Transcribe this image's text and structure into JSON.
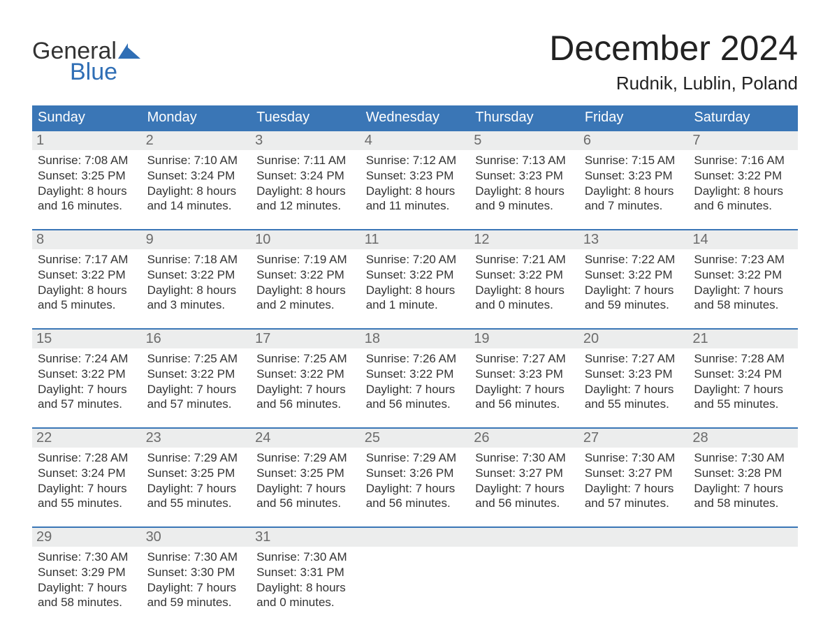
{
  "logo": {
    "line1": "General",
    "line2": "Blue"
  },
  "title": "December 2024",
  "location": "Rudnik, Lublin, Poland",
  "colors": {
    "header_bg": "#3a76b6",
    "header_text": "#ffffff",
    "daynum_bg": "#eceded",
    "daynum_text": "#6b6b6b",
    "divider": "#3a76b6",
    "body_text": "#333333",
    "logo_blue": "#2f6eb5"
  },
  "weekdays": [
    "Sunday",
    "Monday",
    "Tuesday",
    "Wednesday",
    "Thursday",
    "Friday",
    "Saturday"
  ],
  "weeks": [
    [
      {
        "day": "1",
        "sunrise": "Sunrise: 7:08 AM",
        "sunset": "Sunset: 3:25 PM",
        "dl1": "Daylight: 8 hours",
        "dl2": "and 16 minutes."
      },
      {
        "day": "2",
        "sunrise": "Sunrise: 7:10 AM",
        "sunset": "Sunset: 3:24 PM",
        "dl1": "Daylight: 8 hours",
        "dl2": "and 14 minutes."
      },
      {
        "day": "3",
        "sunrise": "Sunrise: 7:11 AM",
        "sunset": "Sunset: 3:24 PM",
        "dl1": "Daylight: 8 hours",
        "dl2": "and 12 minutes."
      },
      {
        "day": "4",
        "sunrise": "Sunrise: 7:12 AM",
        "sunset": "Sunset: 3:23 PM",
        "dl1": "Daylight: 8 hours",
        "dl2": "and 11 minutes."
      },
      {
        "day": "5",
        "sunrise": "Sunrise: 7:13 AM",
        "sunset": "Sunset: 3:23 PM",
        "dl1": "Daylight: 8 hours",
        "dl2": "and 9 minutes."
      },
      {
        "day": "6",
        "sunrise": "Sunrise: 7:15 AM",
        "sunset": "Sunset: 3:23 PM",
        "dl1": "Daylight: 8 hours",
        "dl2": "and 7 minutes."
      },
      {
        "day": "7",
        "sunrise": "Sunrise: 7:16 AM",
        "sunset": "Sunset: 3:22 PM",
        "dl1": "Daylight: 8 hours",
        "dl2": "and 6 minutes."
      }
    ],
    [
      {
        "day": "8",
        "sunrise": "Sunrise: 7:17 AM",
        "sunset": "Sunset: 3:22 PM",
        "dl1": "Daylight: 8 hours",
        "dl2": "and 5 minutes."
      },
      {
        "day": "9",
        "sunrise": "Sunrise: 7:18 AM",
        "sunset": "Sunset: 3:22 PM",
        "dl1": "Daylight: 8 hours",
        "dl2": "and 3 minutes."
      },
      {
        "day": "10",
        "sunrise": "Sunrise: 7:19 AM",
        "sunset": "Sunset: 3:22 PM",
        "dl1": "Daylight: 8 hours",
        "dl2": "and 2 minutes."
      },
      {
        "day": "11",
        "sunrise": "Sunrise: 7:20 AM",
        "sunset": "Sunset: 3:22 PM",
        "dl1": "Daylight: 8 hours",
        "dl2": "and 1 minute."
      },
      {
        "day": "12",
        "sunrise": "Sunrise: 7:21 AM",
        "sunset": "Sunset: 3:22 PM",
        "dl1": "Daylight: 8 hours",
        "dl2": "and 0 minutes."
      },
      {
        "day": "13",
        "sunrise": "Sunrise: 7:22 AM",
        "sunset": "Sunset: 3:22 PM",
        "dl1": "Daylight: 7 hours",
        "dl2": "and 59 minutes."
      },
      {
        "day": "14",
        "sunrise": "Sunrise: 7:23 AM",
        "sunset": "Sunset: 3:22 PM",
        "dl1": "Daylight: 7 hours",
        "dl2": "and 58 minutes."
      }
    ],
    [
      {
        "day": "15",
        "sunrise": "Sunrise: 7:24 AM",
        "sunset": "Sunset: 3:22 PM",
        "dl1": "Daylight: 7 hours",
        "dl2": "and 57 minutes."
      },
      {
        "day": "16",
        "sunrise": "Sunrise: 7:25 AM",
        "sunset": "Sunset: 3:22 PM",
        "dl1": "Daylight: 7 hours",
        "dl2": "and 57 minutes."
      },
      {
        "day": "17",
        "sunrise": "Sunrise: 7:25 AM",
        "sunset": "Sunset: 3:22 PM",
        "dl1": "Daylight: 7 hours",
        "dl2": "and 56 minutes."
      },
      {
        "day": "18",
        "sunrise": "Sunrise: 7:26 AM",
        "sunset": "Sunset: 3:22 PM",
        "dl1": "Daylight: 7 hours",
        "dl2": "and 56 minutes."
      },
      {
        "day": "19",
        "sunrise": "Sunrise: 7:27 AM",
        "sunset": "Sunset: 3:23 PM",
        "dl1": "Daylight: 7 hours",
        "dl2": "and 56 minutes."
      },
      {
        "day": "20",
        "sunrise": "Sunrise: 7:27 AM",
        "sunset": "Sunset: 3:23 PM",
        "dl1": "Daylight: 7 hours",
        "dl2": "and 55 minutes."
      },
      {
        "day": "21",
        "sunrise": "Sunrise: 7:28 AM",
        "sunset": "Sunset: 3:24 PM",
        "dl1": "Daylight: 7 hours",
        "dl2": "and 55 minutes."
      }
    ],
    [
      {
        "day": "22",
        "sunrise": "Sunrise: 7:28 AM",
        "sunset": "Sunset: 3:24 PM",
        "dl1": "Daylight: 7 hours",
        "dl2": "and 55 minutes."
      },
      {
        "day": "23",
        "sunrise": "Sunrise: 7:29 AM",
        "sunset": "Sunset: 3:25 PM",
        "dl1": "Daylight: 7 hours",
        "dl2": "and 55 minutes."
      },
      {
        "day": "24",
        "sunrise": "Sunrise: 7:29 AM",
        "sunset": "Sunset: 3:25 PM",
        "dl1": "Daylight: 7 hours",
        "dl2": "and 56 minutes."
      },
      {
        "day": "25",
        "sunrise": "Sunrise: 7:29 AM",
        "sunset": "Sunset: 3:26 PM",
        "dl1": "Daylight: 7 hours",
        "dl2": "and 56 minutes."
      },
      {
        "day": "26",
        "sunrise": "Sunrise: 7:30 AM",
        "sunset": "Sunset: 3:27 PM",
        "dl1": "Daylight: 7 hours",
        "dl2": "and 56 minutes."
      },
      {
        "day": "27",
        "sunrise": "Sunrise: 7:30 AM",
        "sunset": "Sunset: 3:27 PM",
        "dl1": "Daylight: 7 hours",
        "dl2": "and 57 minutes."
      },
      {
        "day": "28",
        "sunrise": "Sunrise: 7:30 AM",
        "sunset": "Sunset: 3:28 PM",
        "dl1": "Daylight: 7 hours",
        "dl2": "and 58 minutes."
      }
    ],
    [
      {
        "day": "29",
        "sunrise": "Sunrise: 7:30 AM",
        "sunset": "Sunset: 3:29 PM",
        "dl1": "Daylight: 7 hours",
        "dl2": "and 58 minutes."
      },
      {
        "day": "30",
        "sunrise": "Sunrise: 7:30 AM",
        "sunset": "Sunset: 3:30 PM",
        "dl1": "Daylight: 7 hours",
        "dl2": "and 59 minutes."
      },
      {
        "day": "31",
        "sunrise": "Sunrise: 7:30 AM",
        "sunset": "Sunset: 3:31 PM",
        "dl1": "Daylight: 8 hours",
        "dl2": "and 0 minutes."
      },
      null,
      null,
      null,
      null
    ]
  ]
}
